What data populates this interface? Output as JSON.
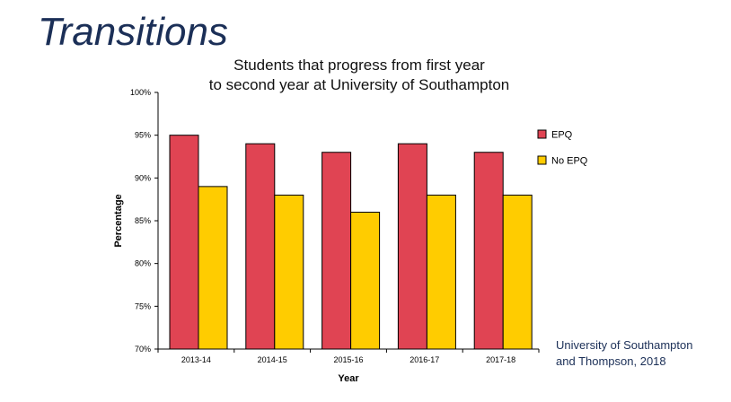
{
  "slide": {
    "title": "Transitions",
    "source_line1": "University of Southampton",
    "source_line2": "and Thompson, 2018"
  },
  "colors": {
    "epq": "#e04453",
    "no_epq": "#ffcc00",
    "title": "#1b2f57"
  },
  "chart_data": {
    "type": "bar",
    "title_line1": "Students that progress from first year",
    "title_line2": "to second year at University of Southampton",
    "xlabel": "Year",
    "ylabel": "Percentage",
    "categories": [
      "2013-14",
      "2014-15",
      "2015-16",
      "2016-17",
      "2017-18"
    ],
    "series": [
      {
        "name": "EPQ",
        "values": [
          95,
          94,
          93,
          94,
          93
        ]
      },
      {
        "name": "No EPQ",
        "values": [
          89,
          88,
          86,
          88,
          88
        ]
      }
    ],
    "ylim": [
      70,
      100
    ],
    "yticks": [
      70,
      75,
      80,
      85,
      90,
      95,
      100
    ],
    "ytick_labels": [
      "70%",
      "75%",
      "80%",
      "85%",
      "90%",
      "95%",
      "100%"
    ],
    "legend_position": "right",
    "grid": false
  }
}
